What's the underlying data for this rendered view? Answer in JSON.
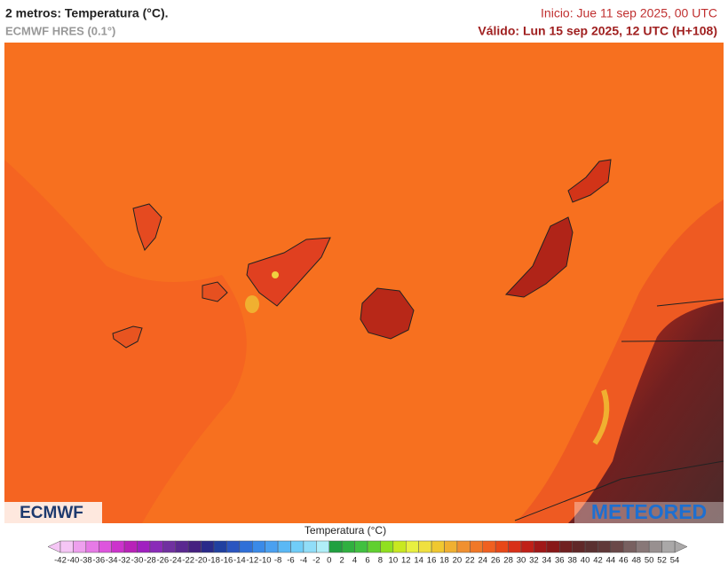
{
  "header": {
    "title": "2 metros: Temperatura (°C).",
    "subtitle": "ECMWF HRES (0.1°)",
    "start": "Inicio: Jue 11 sep 2025, 00 UTC",
    "valid": "Válido: Lun 15 sep 2025, 12 UTC (H+108)"
  },
  "logos": {
    "left": "ECMWF",
    "right": "METEORED"
  },
  "legend": {
    "title": "Temperatura (°C)",
    "ticks": [
      -42,
      -40,
      -38,
      -36,
      -34,
      -32,
      -30,
      -28,
      -26,
      -24,
      -22,
      -20,
      -18,
      -16,
      -14,
      -12,
      -10,
      -8,
      -6,
      -4,
      -2,
      0,
      2,
      4,
      6,
      8,
      10,
      12,
      14,
      16,
      18,
      20,
      22,
      24,
      26,
      28,
      30,
      32,
      34,
      36,
      38,
      40,
      42,
      44,
      46,
      48,
      50,
      52,
      54
    ],
    "colors": [
      "#f5c6f5",
      "#eea0ee",
      "#e67ae6",
      "#dd55dd",
      "#cc33cc",
      "#b822b8",
      "#a020c0",
      "#8a2bb8",
      "#7030a0",
      "#5a2890",
      "#452080",
      "#2a2a8a",
      "#2040a0",
      "#2a55c0",
      "#3070d8",
      "#3a8ae8",
      "#4aa0f0",
      "#5ab8f5",
      "#70cdf8",
      "#90ddf8",
      "#b0eef8",
      "#20a040",
      "#30b040",
      "#40c040",
      "#60d030",
      "#90e020",
      "#c8e820",
      "#e8f040",
      "#f0e040",
      "#f0c830",
      "#f0b030",
      "#f09030",
      "#f07828",
      "#f06020",
      "#e84818",
      "#d83018",
      "#c02018",
      "#a01818",
      "#881818",
      "#702020",
      "#602828",
      "#5a3030",
      "#603838",
      "#6a4848",
      "#786060",
      "#887878",
      "#989090",
      "#aaa8a8"
    ]
  }
}
